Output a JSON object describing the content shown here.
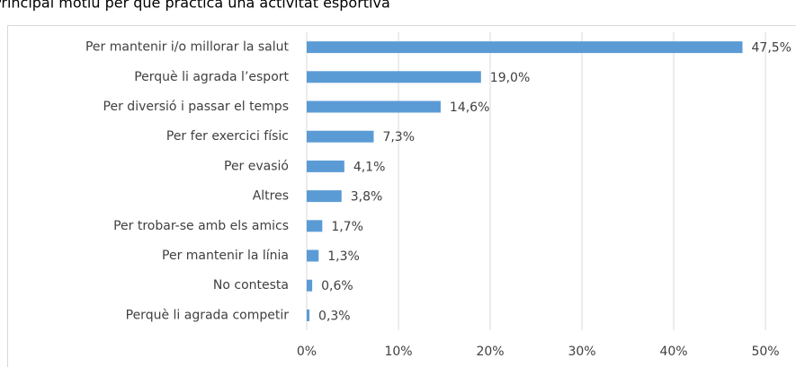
{
  "chart_data": {
    "type": "bar",
    "orientation": "horizontal",
    "title": "Principal motiu per què practica una activitat esportiva",
    "categories": [
      "Per mantenir i/o millorar la salut",
      "Perquè li agrada l’esport",
      "Per diversió i passar el temps",
      "Per fer exercici físic",
      "Per evasió",
      "Altres",
      "Per trobar-se amb els amics",
      "Per mantenir la línia",
      "No contesta",
      "Perquè li agrada competir"
    ],
    "values": [
      47.5,
      19.0,
      14.6,
      7.3,
      4.1,
      3.8,
      1.7,
      1.3,
      0.6,
      0.3
    ],
    "value_labels": [
      "47,5%",
      "19,0%",
      "14,6%",
      "7,3%",
      "4,1%",
      "3,8%",
      "1,7%",
      "1,3%",
      "0,6%",
      "0,3%"
    ],
    "color": "#5b9bd5",
    "xlim": [
      0,
      50
    ],
    "xticks": [
      {
        "value": 0,
        "label": "0%"
      },
      {
        "value": 10,
        "label": "10%"
      },
      {
        "value": 20,
        "label": "20%"
      },
      {
        "value": 30,
        "label": "30%"
      },
      {
        "value": 40,
        "label": "40%"
      },
      {
        "value": 50,
        "label": "50%"
      }
    ],
    "grid": true
  }
}
